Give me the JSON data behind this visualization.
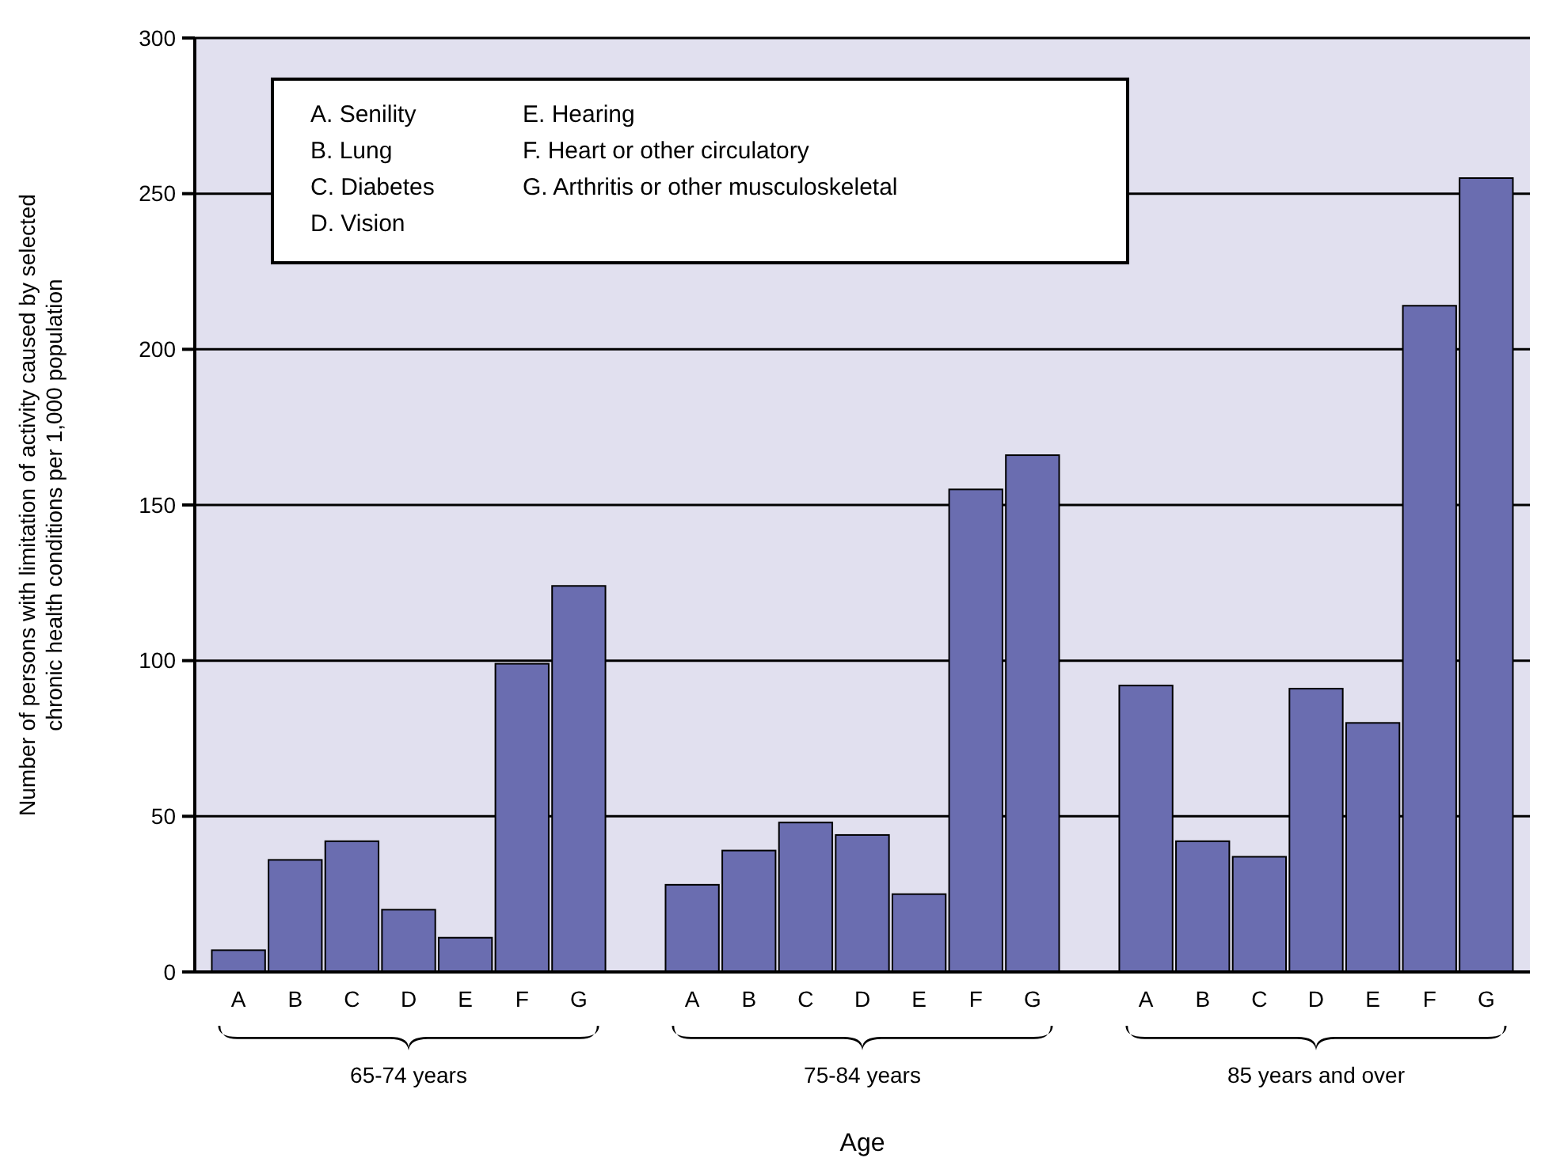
{
  "chart_data": {
    "type": "bar",
    "xlabel": "Age",
    "ylabel": "Number of persons with limitation of activity caused by selected chronic health conditions per 1,000 population",
    "categories": [
      "A",
      "B",
      "C",
      "D",
      "E",
      "F",
      "G",
      null,
      "A",
      "B",
      "C",
      "D",
      "E",
      "F",
      "G",
      null,
      "A",
      "B",
      "C",
      "D",
      "E",
      "F",
      "G"
    ],
    "values": [
      7,
      36,
      42,
      20,
      11,
      99,
      124,
      null,
      28,
      39,
      48,
      44,
      25,
      155,
      166,
      null,
      92,
      42,
      37,
      91,
      80,
      214,
      255
    ],
    "color": "#6a6db0",
    "ylim": [
      0,
      300
    ],
    "yticks": [
      0,
      50,
      100,
      150,
      200,
      250,
      300
    ],
    "grid": "y",
    "annotations": [
      "A. Senility",
      "B. Lung",
      "C. Diabetes",
      "D. Vision",
      "E. Hearing",
      "F. Heart or other circulatory",
      "G. Arthritis or other musculoskeletal",
      "65-74 years",
      "75-84 years",
      "85 years and over"
    ]
  }
}
